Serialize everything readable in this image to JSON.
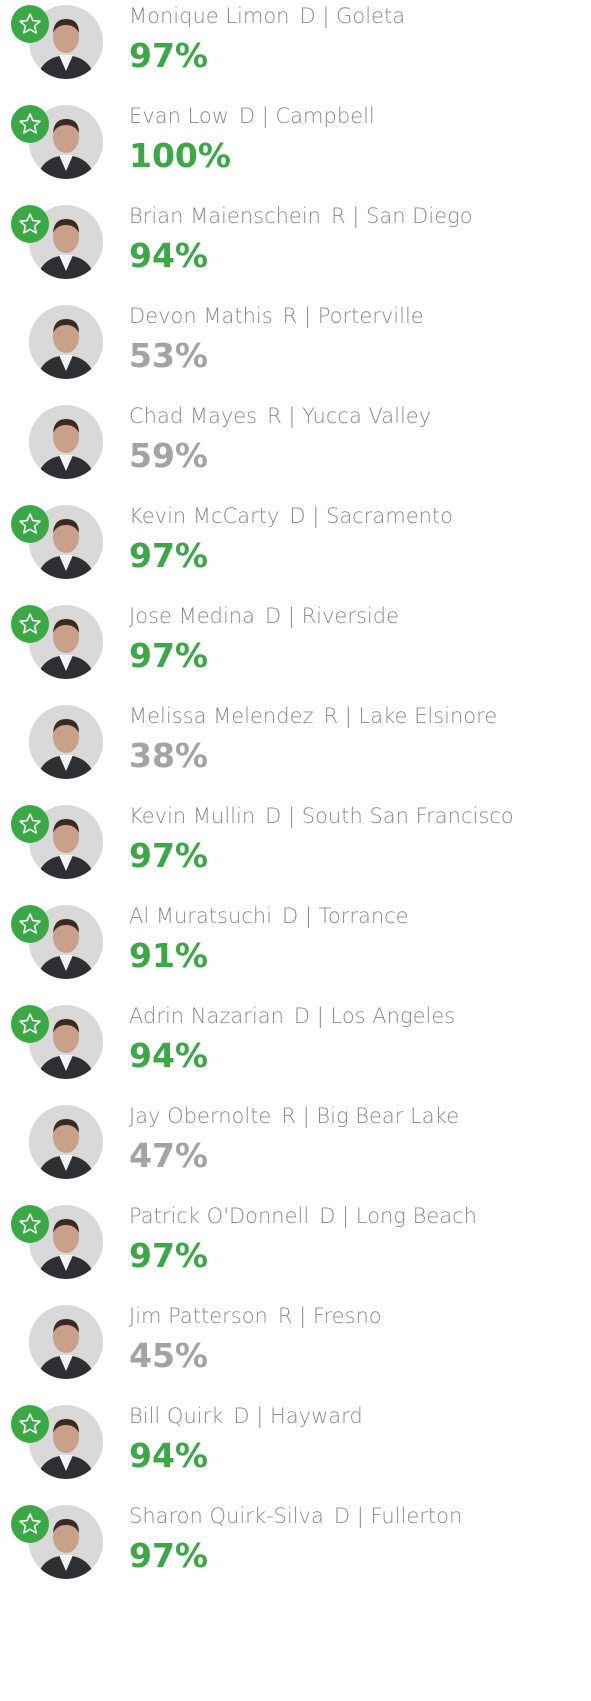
{
  "members": [
    {
      "name": "Monique Limon",
      "affiliation": "D | Goleta",
      "score": "97%",
      "starred": true
    },
    {
      "name": "Evan Low",
      "affiliation": "D | Campbell",
      "score": "100%",
      "starred": true
    },
    {
      "name": "Brian Maienschein",
      "affiliation": "R | San Diego",
      "score": "94%",
      "starred": true
    },
    {
      "name": "Devon Mathis",
      "affiliation": "R | Porterville",
      "score": "53%",
      "starred": false
    },
    {
      "name": "Chad Mayes",
      "affiliation": "R | Yucca Valley",
      "score": "59%",
      "starred": false
    },
    {
      "name": "Kevin McCarty",
      "affiliation": "D | Sacramento",
      "score": "97%",
      "starred": true
    },
    {
      "name": "Jose Medina",
      "affiliation": "D | Riverside",
      "score": "97%",
      "starred": true
    },
    {
      "name": "Melissa Melendez",
      "affiliation": "R | Lake Elsinore",
      "score": "38%",
      "starred": false
    },
    {
      "name": "Kevin Mullin",
      "affiliation": "D | South San Francisco",
      "score": "97%",
      "starred": true
    },
    {
      "name": "Al Muratsuchi",
      "affiliation": "D | Torrance",
      "score": "91%",
      "starred": true
    },
    {
      "name": "Adrin Nazarian",
      "affiliation": "D | Los Angeles",
      "score": "94%",
      "starred": true
    },
    {
      "name": "Jay Obernolte",
      "affiliation": "R | Big Bear Lake",
      "score": "47%",
      "starred": false
    },
    {
      "name": "Patrick O'Donnell",
      "affiliation": "D | Long Beach",
      "score": "97%",
      "starred": true
    },
    {
      "name": "Jim Patterson",
      "affiliation": "R | Fresno",
      "score": "45%",
      "starred": false
    },
    {
      "name": "Bill Quirk",
      "affiliation": "D | Hayward",
      "score": "94%",
      "starred": true
    },
    {
      "name": "Sharon Quirk-Silva",
      "affiliation": "D | Fullerton",
      "score": "97%",
      "starred": true
    }
  ]
}
